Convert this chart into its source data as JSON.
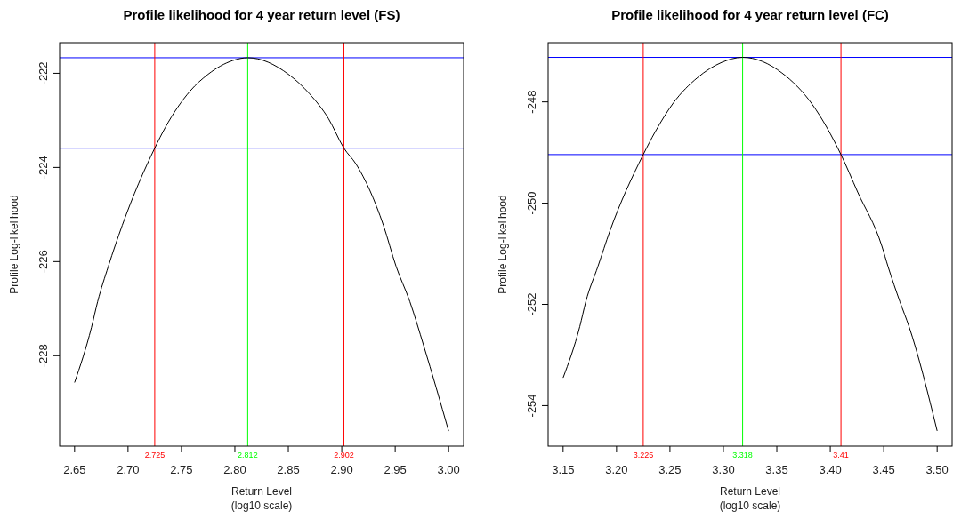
{
  "chart_data": [
    {
      "type": "line",
      "title": "Profile likelihood for 4 year return level (FS)",
      "xlabel": "Return Level\n(log10 scale)",
      "ylabel": "Profile Log-likelihood",
      "xlim": [
        2.636,
        3.014
      ],
      "ylim": [
        -229.92,
        -221.35
      ],
      "xticks": [
        {
          "value": 2.65,
          "label": "2.65"
        },
        {
          "value": 2.7,
          "label": "2.70"
        },
        {
          "value": 2.75,
          "label": "2.75"
        },
        {
          "value": 2.8,
          "label": "2.80"
        },
        {
          "value": 2.85,
          "label": "2.85"
        },
        {
          "value": 2.9,
          "label": "2.90"
        },
        {
          "value": 2.95,
          "label": "2.95"
        },
        {
          "value": 3.0,
          "label": "3.00"
        }
      ],
      "yticks": [
        -222,
        -224,
        -226,
        -228
      ],
      "grid": false,
      "marker": "none",
      "line_style": "solid",
      "series": [
        {
          "color": "#000000",
          "x": [
            2.65,
            2.6658,
            2.6716,
            2.6816,
            2.6946,
            2.725,
            2.7349,
            2.758,
            2.775,
            2.798,
            2.812,
            2.85,
            2.87,
            2.8875,
            2.902,
            2.9134,
            2.939,
            2.9508,
            2.9637,
            2.9767,
            3.0
          ],
          "values": [
            -228.57,
            -227.4,
            -226.85,
            -226.1,
            -225.23,
            -223.59,
            -223.15,
            -222.38,
            -222.02,
            -221.73,
            -221.67,
            -222.02,
            -222.44,
            -222.96,
            -223.59,
            -223.93,
            -225.23,
            -226.1,
            -226.85,
            -227.79,
            -229.6
          ]
        }
      ],
      "ref_lines": [
        {
          "axis": "y",
          "value": -221.67,
          "color": "#0000ff"
        },
        {
          "axis": "y",
          "value": -223.59,
          "color": "#0000ff"
        },
        {
          "axis": "x",
          "value": 2.725,
          "label": "2.725",
          "color": "#ff0000"
        },
        {
          "axis": "x",
          "value": 2.812,
          "label": "2.812",
          "color": "#00ff00"
        },
        {
          "axis": "x",
          "value": 2.902,
          "label": "2.902",
          "color": "#ff0000"
        }
      ]
    },
    {
      "type": "line",
      "title": "Profile likelihood for 4 year return level (FC)",
      "xlabel": "Return Level\n(log10 scale)",
      "ylabel": "Profile Log-likelihood",
      "xlim": [
        3.136,
        3.514
      ],
      "ylim": [
        -254.8,
        -246.83
      ],
      "xticks": [
        3.15,
        {
          "value": 3.2,
          "label": "3.20"
        },
        3.25,
        {
          "value": 3.3,
          "label": "3.30"
        },
        3.35,
        {
          "value": 3.4,
          "label": "3.40"
        },
        3.45,
        {
          "value": 3.5,
          "label": "3.50"
        }
      ],
      "yticks": [
        -248,
        -250,
        -252,
        -254
      ],
      "grid": false,
      "marker": "none",
      "line_style": "solid",
      "series": [
        {
          "color": "#000000",
          "x": [
            3.15,
            3.1656,
            3.1712,
            3.1826,
            3.1938,
            3.225,
            3.2362,
            3.2532,
            3.2758,
            3.2984,
            3.318,
            3.3549,
            3.3832,
            3.41,
            3.4256,
            3.4483,
            3.454,
            3.4652,
            3.4737,
            3.5
          ],
          "values": [
            -253.45,
            -252.44,
            -251.95,
            -251.25,
            -250.55,
            -249.04,
            -248.59,
            -248.02,
            -247.52,
            -247.22,
            -247.12,
            -247.43,
            -248.05,
            -249.04,
            -249.78,
            -250.85,
            -251.25,
            -251.95,
            -252.44,
            -254.5
          ]
        }
      ],
      "ref_lines": [
        {
          "axis": "y",
          "value": -247.12,
          "color": "#0000ff"
        },
        {
          "axis": "y",
          "value": -249.04,
          "color": "#0000ff"
        },
        {
          "axis": "x",
          "value": 3.225,
          "label": "3.225",
          "color": "#ff0000"
        },
        {
          "axis": "x",
          "value": 3.318,
          "label": "3.318",
          "color": "#00ff00"
        },
        {
          "axis": "x",
          "value": 3.41,
          "label": "3.41",
          "color": "#ff0000"
        }
      ]
    }
  ]
}
